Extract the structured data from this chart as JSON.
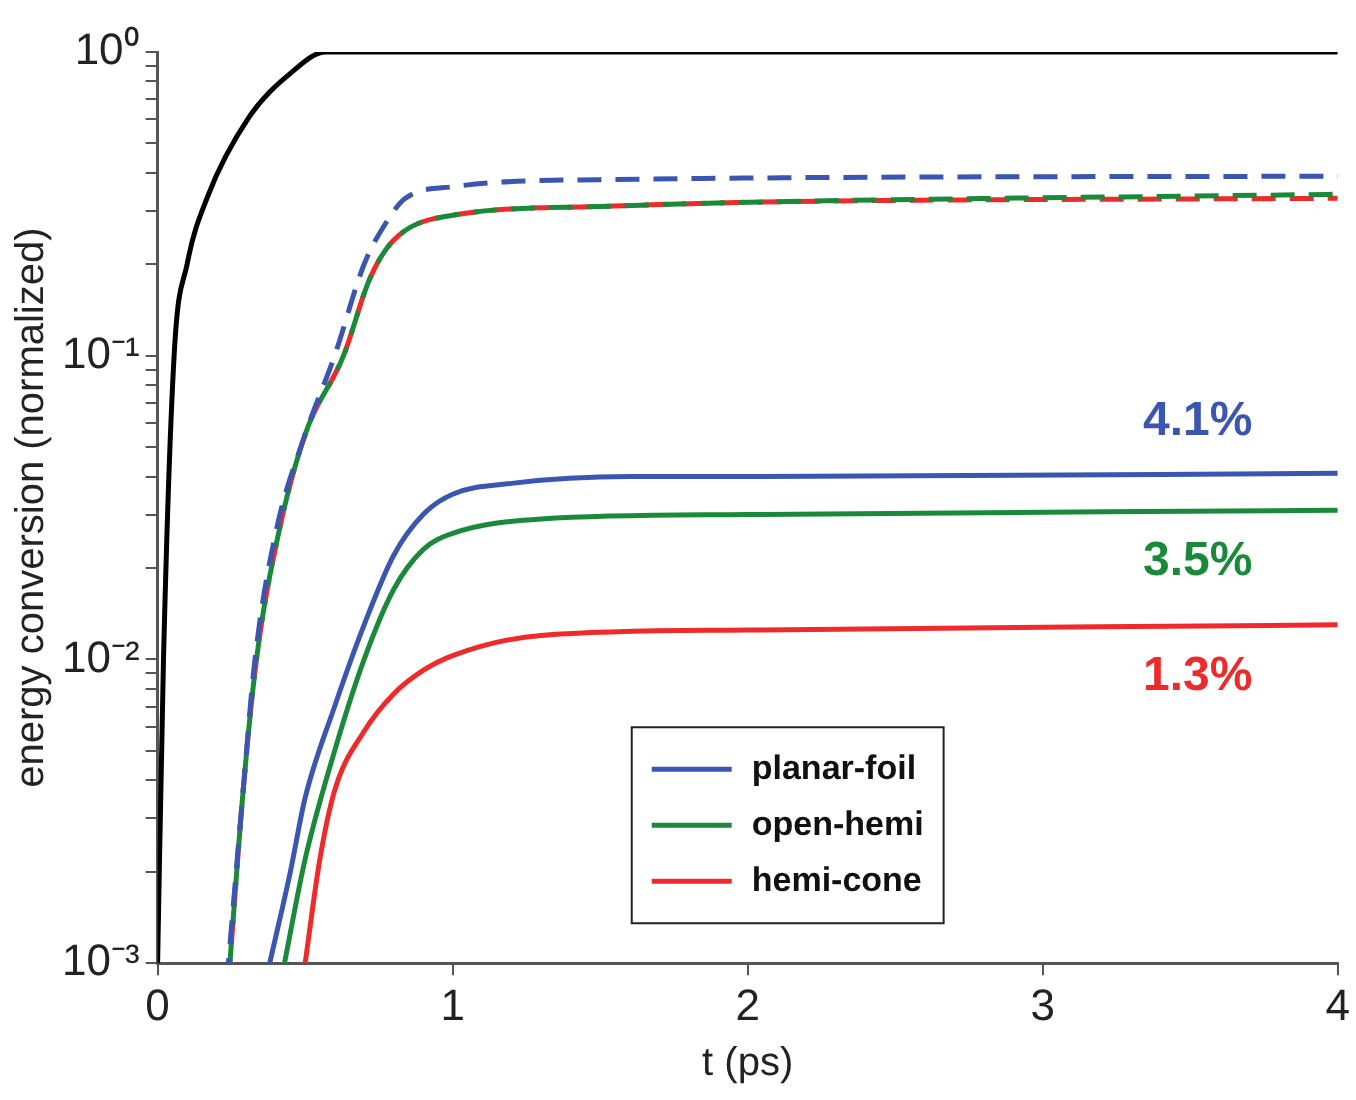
{
  "chart_data": {
    "type": "line",
    "xlabel": "t (ps)",
    "ylabel": "energy conversion (normalized)",
    "log": "y",
    "grid": false,
    "legend": "bottom",
    "marker": "none",
    "xlim": [
      0,
      4
    ],
    "xticks": [
      0,
      1,
      2,
      3,
      4
    ],
    "ylim": [
      0.001,
      1
    ],
    "yticks": [
      {
        "value": 0.001,
        "label": "10⁻³"
      },
      {
        "value": 0.002,
        "label": null
      },
      {
        "value": 0.003,
        "label": null
      },
      {
        "value": 0.004,
        "label": null
      },
      {
        "value": 0.005,
        "label": null
      },
      {
        "value": 0.006,
        "label": null
      },
      {
        "value": 0.007,
        "label": null
      },
      {
        "value": 0.008,
        "label": null
      },
      {
        "value": 0.009,
        "label": null
      },
      {
        "value": 0.01,
        "label": "10⁻²"
      },
      {
        "value": 0.02,
        "label": null
      },
      {
        "value": 0.03,
        "label": null
      },
      {
        "value": 0.04,
        "label": null
      },
      {
        "value": 0.05,
        "label": null
      },
      {
        "value": 0.06,
        "label": null
      },
      {
        "value": 0.07,
        "label": null
      },
      {
        "value": 0.08,
        "label": null
      },
      {
        "value": 0.09,
        "label": null
      },
      {
        "value": 0.1,
        "label": "10⁻¹"
      },
      {
        "value": 0.2,
        "label": null
      },
      {
        "value": 0.3,
        "label": null
      },
      {
        "value": 0.4,
        "label": null
      },
      {
        "value": 0.5,
        "label": null
      },
      {
        "value": 0.6,
        "label": null
      },
      {
        "value": 0.7,
        "label": null
      },
      {
        "value": 0.8,
        "label": null
      },
      {
        "value": 0.9,
        "label": null
      },
      {
        "value": 1,
        "label": "10⁰"
      }
    ],
    "series": [
      {
        "color": "#000000",
        "line_style": "solid",
        "x": [
          0,
          0.02,
          0.056,
          0.1,
          0.17,
          0.31,
          0.45,
          0.57,
          4
        ],
        "values": [
          0.001,
          0.01,
          0.1,
          0.2,
          0.335,
          0.61,
          0.85,
          1,
          1
        ]
      },
      {
        "color": "#3a56b0",
        "line_style": "dashed",
        "x": [
          0.24,
          0.29,
          0.33,
          0.4,
          0.5,
          0.6,
          0.7,
          0.77,
          0.84,
          1,
          1.5,
          4
        ],
        "values": [
          0.001,
          0.0037,
          0.01,
          0.026,
          0.055,
          0.1,
          0.2,
          0.27,
          0.33,
          0.36,
          0.38,
          0.39
        ]
      },
      {
        "color": "#1a8a3a",
        "line_style": "dashed",
        "x": [
          0.245,
          0.29,
          0.335,
          0.41,
          0.5,
          0.63,
          0.72,
          0.8,
          1,
          1.5,
          2,
          4
        ],
        "values": [
          0.001,
          0.0037,
          0.01,
          0.026,
          0.055,
          0.1,
          0.18,
          0.24,
          0.29,
          0.31,
          0.32,
          0.34
        ]
      },
      {
        "color": "#ee2a2a",
        "line_style": "dashed",
        "x": [
          0.245,
          0.29,
          0.335,
          0.41,
          0.5,
          0.63,
          0.72,
          0.8,
          1,
          1.5,
          2,
          4
        ],
        "values": [
          0.001,
          0.0037,
          0.01,
          0.026,
          0.055,
          0.1,
          0.18,
          0.24,
          0.29,
          0.31,
          0.32,
          0.33
        ]
      },
      {
        "name": "planar-foil",
        "color": "#3a56b0",
        "line_style": "solid",
        "x": [
          0.38,
          0.45,
          0.5,
          0.6,
          0.7,
          0.8,
          0.9,
          1,
          1.2,
          1.6,
          2,
          4
        ],
        "values": [
          0.001,
          0.002,
          0.0035,
          0.007,
          0.013,
          0.022,
          0.03,
          0.035,
          0.038,
          0.04,
          0.04,
          0.041
        ]
      },
      {
        "name": "open-hemi",
        "color": "#1a8a3a",
        "line_style": "solid",
        "x": [
          0.43,
          0.5,
          0.6,
          0.7,
          0.8,
          0.9,
          1,
          1.3,
          2,
          4
        ],
        "values": [
          0.001,
          0.0022,
          0.005,
          0.01,
          0.017,
          0.023,
          0.026,
          0.029,
          0.03,
          0.031
        ]
      },
      {
        "name": "hemi-cone",
        "color": "#ee2a2a",
        "line_style": "solid",
        "x": [
          0.5,
          0.55,
          0.6,
          0.7,
          0.8,
          0.9,
          1,
          1.3,
          2,
          4
        ],
        "values": [
          0.001,
          0.0022,
          0.0037,
          0.0058,
          0.0077,
          0.0092,
          0.0103,
          0.012,
          0.0125,
          0.013
        ]
      }
    ],
    "annotations": [
      "4.1%",
      "3.5%",
      "1.3%"
    ]
  }
}
